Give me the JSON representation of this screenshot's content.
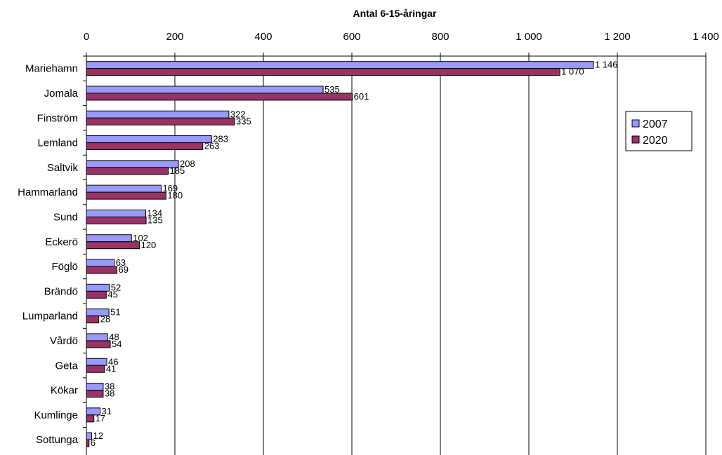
{
  "chart_data": {
    "type": "bar",
    "orientation": "horizontal",
    "title": "Antal 6-15-åringar",
    "categories": [
      "Mariehamn",
      "Jomala",
      "Finström",
      "Lemland",
      "Saltvik",
      "Hammarland",
      "Sund",
      "Eckerö",
      "Föglö",
      "Brändö",
      "Lumparland",
      "Vårdö",
      "Geta",
      "Kökar",
      "Kumlinge",
      "Sottunga"
    ],
    "series": [
      {
        "name": "2007",
        "color": "#9999FF",
        "values": [
          1146,
          535,
          322,
          283,
          208,
          169,
          134,
          102,
          63,
          52,
          51,
          48,
          46,
          38,
          31,
          12
        ],
        "labels": [
          "1 146",
          "535",
          "322",
          "283",
          "208",
          "169",
          "134",
          "102",
          "63",
          "52",
          "51",
          "48",
          "46",
          "38",
          "31",
          "12"
        ]
      },
      {
        "name": "2020",
        "color": "#993366",
        "values": [
          1070,
          601,
          335,
          263,
          185,
          180,
          135,
          120,
          69,
          45,
          28,
          54,
          41,
          38,
          17,
          6
        ],
        "labels": [
          "1 070",
          "601",
          "335",
          "263",
          "185",
          "180",
          "135",
          "120",
          "69",
          "45",
          "28",
          "54",
          "41",
          "38",
          "17",
          "6"
        ]
      }
    ],
    "xlim": [
      0,
      1400
    ],
    "xticks": [
      0,
      200,
      400,
      600,
      800,
      1000,
      1200,
      1400
    ],
    "xtick_labels": [
      "0",
      "200",
      "400",
      "600",
      "800",
      "1 000",
      "1 200",
      "1 400"
    ],
    "axis_position": "top",
    "grid": true,
    "legend_position": "right"
  }
}
